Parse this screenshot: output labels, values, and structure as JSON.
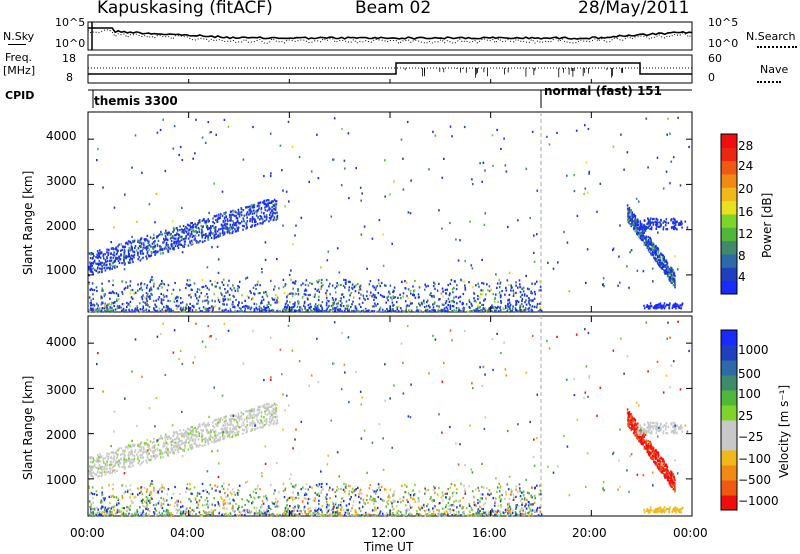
{
  "header": {
    "station": "Kapuskasing (fitACF)",
    "beam": "Beam 02",
    "date": "28/May/2011"
  },
  "top_panels": {
    "nsky_label": "N.Sky",
    "nsky_ticks": [
      "10^5",
      "10^0"
    ],
    "nsearch_label": "N.Search",
    "nsearch_ticks": [
      "10^5",
      "10^0"
    ],
    "freq_label_1": "Freq.",
    "freq_label_2": "[MHz]",
    "freq_ticks": [
      "18",
      "8"
    ],
    "nave_label": "Nave",
    "nave_ticks": [
      "60",
      "0"
    ],
    "cpid_label": "CPID",
    "cpid_segments": [
      "themis 3300",
      "normal (fast) 151"
    ]
  },
  "colors": {
    "power_scale": [
      "#1a2bff",
      "#1f3fbf",
      "#2d6aa8",
      "#3f8a6a",
      "#4fb83a",
      "#7fd42a",
      "#e8e020",
      "#f0b818",
      "#f08a14",
      "#ee5a12",
      "#e82810",
      "#ee0e0e"
    ],
    "velocity_scale": [
      "#1a2bff",
      "#1f3fbf",
      "#2d6aa8",
      "#3f8a6a",
      "#4fb83a",
      "#7fd42a",
      "#c8c8c8",
      "#c8c8c8",
      "#f0b818",
      "#f08a14",
      "#ee5a12",
      "#ee0e0e"
    ]
  },
  "chart_data": [
    {
      "type": "heatmap",
      "name": "power",
      "ylabel": "Slant Range [km]",
      "yticks": [
        "1000",
        "2000",
        "3000",
        "4000"
      ],
      "ylim": [
        180,
        4600
      ],
      "colorbar_label": "Power [dB]",
      "colorbar_ticks": [
        "4",
        "8",
        "12",
        "16",
        "20",
        "24",
        "28"
      ],
      "colorbar_range": [
        0,
        30
      ]
    },
    {
      "type": "heatmap",
      "name": "velocity",
      "ylabel": "Slant Range [km]",
      "yticks": [
        "1000",
        "2000",
        "3000",
        "4000"
      ],
      "ylim": [
        180,
        4600
      ],
      "colorbar_label": "Velocity [m s⁻¹]",
      "colorbar_ticks": [
        "1000",
        "500",
        "100",
        "25",
        "−25",
        "−100",
        "−500",
        "−1000"
      ]
    }
  ],
  "xaxis": {
    "ticks": [
      "00:00",
      "04:00",
      "08:00",
      "12:00",
      "16:00",
      "20:00",
      "00:00"
    ],
    "label": "Time UT",
    "range_hours": [
      0,
      24
    ]
  }
}
